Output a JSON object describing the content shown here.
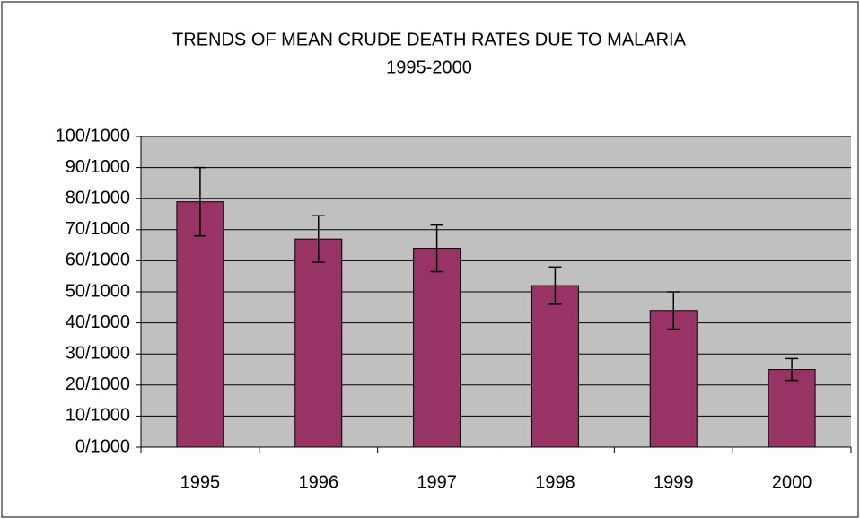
{
  "chart_data": {
    "type": "bar",
    "title": "TRENDS OF MEAN CRUDE DEATH RATES DUE TO MALARIA",
    "subtitle": "1995-2000",
    "categories": [
      "1995",
      "1996",
      "1997",
      "1998",
      "1999",
      "2000"
    ],
    "values": [
      79,
      67,
      64,
      52,
      44,
      25
    ],
    "errors": [
      11,
      7.5,
      7.5,
      6,
      6,
      3.5
    ],
    "color": "#993366",
    "ylim": [
      0,
      100
    ],
    "yticks": [
      {
        "value": 0,
        "label": "0/1000"
      },
      {
        "value": 10,
        "label": "10/1000"
      },
      {
        "value": 20,
        "label": "20/1000"
      },
      {
        "value": 30,
        "label": "30/1000"
      },
      {
        "value": 40,
        "label": "40/1000"
      },
      {
        "value": 50,
        "label": "50/1000"
      },
      {
        "value": 60,
        "label": "60/1000"
      },
      {
        "value": 70,
        "label": "70/1000"
      },
      {
        "value": 80,
        "label": "80/1000"
      },
      {
        "value": 90,
        "label": "90/1000"
      },
      {
        "value": 100,
        "label": "100/1000"
      }
    ],
    "grid": true
  }
}
